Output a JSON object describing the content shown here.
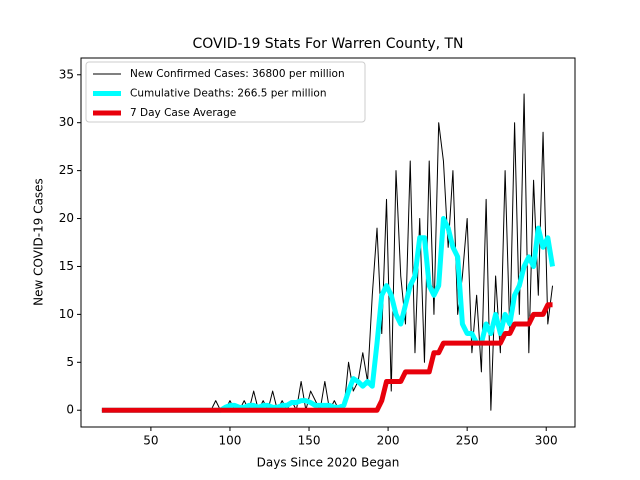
{
  "chart_data": {
    "type": "line",
    "title": "COVID-19 Stats For Warren County, TN",
    "xlabel": "Days Since 2020 Began",
    "ylabel": "New COVID-19 Cases",
    "xlim": [
      5.8,
      318.2
    ],
    "xticks": [
      50,
      100,
      150,
      200,
      250,
      300
    ],
    "ylim": [
      -1.75,
      36.75
    ],
    "yticks": [
      0,
      5,
      10,
      15,
      20,
      25,
      30,
      35
    ],
    "legend": "upper left",
    "x": [
      19,
      22,
      25,
      28,
      31,
      34,
      37,
      40,
      43,
      46,
      49,
      52,
      55,
      58,
      61,
      64,
      67,
      70,
      73,
      76,
      79,
      82,
      85,
      88,
      91,
      94,
      97,
      100,
      103,
      106,
      109,
      112,
      115,
      118,
      121,
      124,
      127,
      130,
      133,
      136,
      139,
      142,
      145,
      148,
      151,
      154,
      157,
      160,
      163,
      166,
      169,
      172,
      175,
      178,
      181,
      184,
      187,
      190,
      193,
      196,
      199,
      202,
      205,
      208,
      211,
      214,
      217,
      220,
      223,
      226,
      229,
      232,
      235,
      238,
      241,
      244,
      247,
      250,
      253,
      256,
      259,
      262,
      265,
      268,
      271,
      274,
      277,
      280,
      283,
      286,
      289,
      292,
      295,
      298,
      301,
      304
    ],
    "series": [
      {
        "name": "New Confirmed Cases: 36800 per million",
        "color": "#000000",
        "values": [
          0,
          0,
          0,
          0,
          0,
          0,
          0,
          0,
          0,
          0,
          0,
          0,
          0,
          0,
          0,
          0,
          0,
          0,
          0,
          0,
          0,
          0,
          0,
          0,
          1,
          0,
          0,
          1,
          0,
          0,
          1,
          0,
          2,
          0,
          1,
          0,
          2,
          0,
          1,
          0,
          1,
          0,
          3,
          0,
          2,
          1,
          0,
          3,
          0,
          1,
          0,
          0,
          5,
          2,
          3,
          6,
          3,
          12,
          19,
          8,
          22,
          2,
          25,
          14,
          9,
          26,
          6,
          20,
          5,
          26,
          10,
          30,
          26,
          17,
          25,
          10,
          14,
          20,
          6,
          12,
          4,
          22,
          0,
          14,
          6,
          25,
          8,
          30,
          10,
          33,
          6,
          24,
          12,
          29,
          9,
          13
        ]
      },
      {
        "name": "Cumulative Deaths: 266.5 per million",
        "color": "#00ffff",
        "values": [
          0,
          0,
          0,
          0,
          0,
          0,
          0,
          0,
          0,
          0,
          0,
          0,
          0,
          0,
          0,
          0,
          0,
          0,
          0,
          0,
          0,
          0,
          0,
          0,
          0,
          0,
          0.3,
          0.5,
          0.5,
          0.3,
          0.3,
          0.5,
          0.5,
          0.3,
          0.5,
          0.5,
          0.3,
          0.3,
          0.5,
          0.5,
          0.8,
          0.8,
          1,
          1,
          0.8,
          0.5,
          0.5,
          0.5,
          0.5,
          0.3,
          0.3,
          0.5,
          2,
          3.3,
          3,
          2.5,
          3,
          2.5,
          7,
          12,
          13,
          12,
          10,
          9,
          11,
          13,
          14,
          18,
          18,
          13,
          12,
          13,
          20,
          19,
          17,
          16,
          9,
          8,
          8,
          7,
          7,
          9,
          8,
          10,
          8,
          10,
          9,
          12,
          13,
          15,
          16,
          15,
          19,
          17,
          18,
          15
        ]
      },
      {
        "name": "7 Day Case Average",
        "color": "#e8000b",
        "values": [
          0,
          0,
          0,
          0,
          0,
          0,
          0,
          0,
          0,
          0,
          0,
          0,
          0,
          0,
          0,
          0,
          0,
          0,
          0,
          0,
          0,
          0,
          0,
          0,
          0,
          0,
          0,
          0,
          0,
          0,
          0,
          0,
          0,
          0,
          0,
          0,
          0,
          0,
          0,
          0,
          0,
          0,
          0,
          0,
          0,
          0,
          0,
          0,
          0,
          0,
          0,
          0,
          0,
          0,
          0,
          0,
          0,
          0,
          0,
          1,
          3,
          3,
          3,
          3,
          4,
          4,
          4,
          4,
          4,
          4,
          6,
          6,
          7,
          7,
          7,
          7,
          7,
          7,
          7,
          7,
          7,
          7,
          7,
          7,
          7,
          8,
          8,
          9,
          9,
          9,
          9,
          10,
          10,
          10,
          11,
          11
        ]
      }
    ]
  }
}
